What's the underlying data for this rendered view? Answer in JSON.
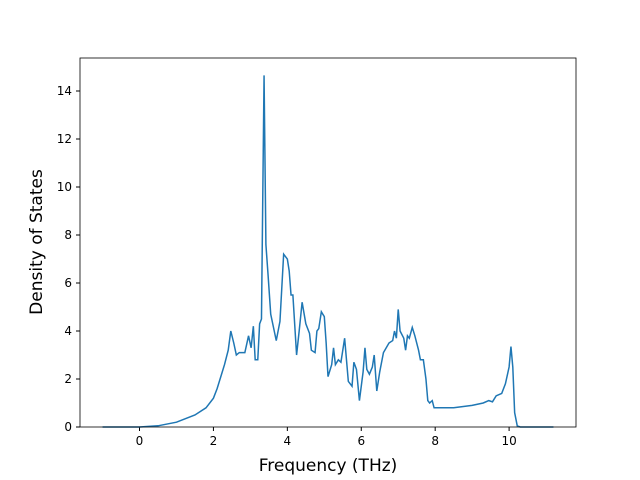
{
  "chart_data": {
    "type": "line",
    "x_label": "Frequency (THz)",
    "y_label": "Density of States",
    "xlim": [
      -1.61,
      11.81
    ],
    "ylim": [
      0,
      15.375
    ],
    "xticks": [
      0,
      2,
      4,
      6,
      8,
      10
    ],
    "yticks": [
      0,
      2,
      4,
      6,
      8,
      10,
      12,
      14
    ],
    "x": [
      -1,
      0,
      0.5,
      1,
      1.5,
      1.8,
      2.0,
      2.1,
      2.2,
      2.3,
      2.4,
      2.47,
      2.55,
      2.62,
      2.7,
      2.85,
      2.95,
      3.02,
      3.08,
      3.13,
      3.2,
      3.25,
      3.3,
      3.37,
      3.42,
      3.48,
      3.55,
      3.7,
      3.8,
      3.9,
      4.0,
      4.05,
      4.1,
      4.15,
      4.25,
      4.32,
      4.4,
      4.5,
      4.6,
      4.65,
      4.75,
      4.8,
      4.85,
      4.92,
      5.0,
      5.05,
      5.1,
      5.2,
      5.25,
      5.3,
      5.38,
      5.45,
      5.55,
      5.6,
      5.65,
      5.75,
      5.8,
      5.87,
      5.95,
      6.05,
      6.1,
      6.15,
      6.22,
      6.3,
      6.35,
      6.42,
      6.5,
      6.6,
      6.75,
      6.85,
      6.9,
      6.95,
      7.0,
      7.05,
      7.15,
      7.2,
      7.25,
      7.3,
      7.38,
      7.45,
      7.55,
      7.6,
      7.68,
      7.75,
      7.8,
      7.85,
      7.92,
      7.97,
      8.5,
      9.0,
      9.3,
      9.45,
      9.55,
      9.65,
      9.8,
      9.9,
      10.0,
      10.05,
      10.1,
      10.15,
      10.22,
      10.3,
      11.2
    ],
    "series": [
      {
        "color": "#1f77b4",
        "values": [
          0,
          0,
          0.05,
          0.2,
          0.5,
          0.8,
          1.2,
          1.6,
          2.1,
          2.6,
          3.2,
          4.0,
          3.5,
          3.0,
          3.1,
          3.1,
          3.8,
          3.3,
          4.2,
          2.8,
          2.8,
          4.3,
          4.5,
          14.65,
          7.6,
          6.3,
          4.7,
          3.6,
          4.4,
          7.2,
          7.0,
          6.5,
          5.5,
          5.5,
          3.0,
          4.0,
          5.2,
          4.3,
          3.9,
          3.2,
          3.1,
          4.0,
          4.1,
          4.8,
          4.6,
          3.5,
          2.1,
          2.6,
          3.3,
          2.6,
          2.8,
          2.7,
          3.7,
          2.8,
          1.9,
          1.7,
          2.7,
          2.4,
          1.1,
          2.3,
          3.3,
          2.4,
          2.2,
          2.5,
          3.0,
          1.5,
          2.3,
          3.1,
          3.5,
          3.6,
          4.0,
          3.7,
          4.9,
          4.0,
          3.7,
          3.2,
          3.8,
          3.7,
          4.15,
          3.8,
          3.2,
          2.8,
          2.8,
          2.0,
          1.1,
          1.0,
          1.1,
          0.8,
          0.8,
          0.9,
          1.0,
          1.1,
          1.05,
          1.3,
          1.4,
          1.8,
          2.5,
          3.35,
          2.5,
          0.6,
          0.05,
          0,
          0
        ]
      }
    ]
  }
}
